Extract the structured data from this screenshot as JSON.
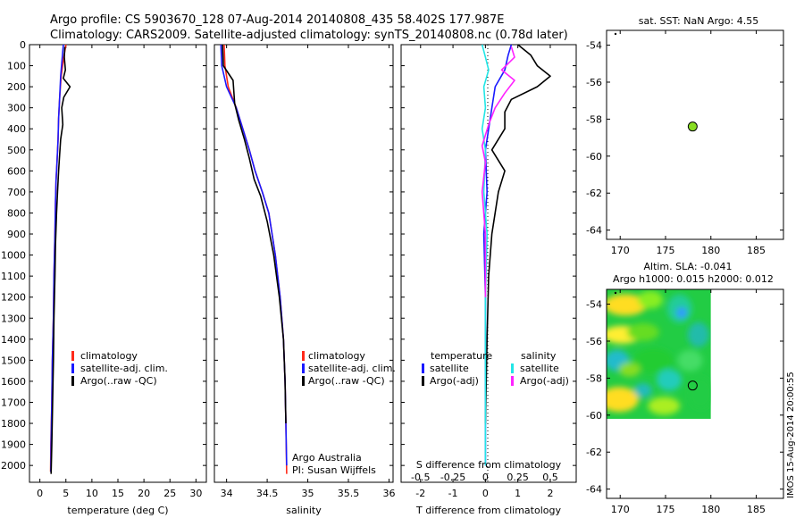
{
  "header": {
    "line1": "Argo profile: CS 5903670_128 07-Aug-2014 20140808_435 58.402S 177.987E",
    "line2": "Climatology: CARS2009. Satellite-adjusted climatology: synTS_20140808.nc (0.78d later)"
  },
  "colors": {
    "climatology": "#ff2a1a",
    "satellite": "#1a1aff",
    "argo": "#000000",
    "sat_salinity": "#22e6e6",
    "argo_salinity": "#ff22ff",
    "marker": "#88dd22"
  },
  "watermark": "IMOS 15-Aug-2014 20:00:55",
  "chart_data": [
    {
      "type": "line",
      "panel": "temperature",
      "xlabel": "temperature (deg C)",
      "xlim": [
        -2,
        32
      ],
      "ylim": [
        2080,
        0
      ],
      "xticks": [
        "0",
        "5",
        "10",
        "15",
        "20",
        "25",
        "30"
      ],
      "yticks": [
        "0",
        "100",
        "200",
        "300",
        "400",
        "500",
        "600",
        "700",
        "800",
        "900",
        "1000",
        "1100",
        "1200",
        "1300",
        "1400",
        "1500",
        "1600",
        "1700",
        "1800",
        "1900",
        "2000"
      ],
      "legend": [
        "climatology",
        "satellite-adj. clim.",
        "Argo(..raw -QC)"
      ],
      "series": [
        {
          "name": "climatology",
          "color": "#ff2a1a",
          "x": [
            5.0,
            4.6,
            4.1,
            3.8,
            3.6,
            3.5,
            3.3,
            3.1,
            3.0,
            2.9,
            2.7,
            2.6,
            2.4,
            2.3,
            2.1,
            2.05
          ],
          "y": [
            0,
            60,
            150,
            250,
            350,
            450,
            550,
            650,
            750,
            900,
            1100,
            1300,
            1500,
            1700,
            1900,
            2030
          ]
        },
        {
          "name": "satellite-adj. clim.",
          "color": "#1a1aff",
          "x": [
            4.5,
            4.3,
            4.0,
            3.8,
            3.6,
            3.5,
            3.3,
            3.1,
            3.0,
            2.9,
            2.7,
            2.6,
            2.4,
            2.3,
            2.15,
            2.1
          ],
          "y": [
            0,
            60,
            150,
            250,
            350,
            450,
            550,
            650,
            750,
            900,
            1100,
            1300,
            1500,
            1700,
            1900,
            2030
          ]
        },
        {
          "name": "Argo(..raw -QC)",
          "color": "#000000",
          "x": [
            4.8,
            4.7,
            4.9,
            4.5,
            5.8,
            4.6,
            4.2,
            4.4,
            4.0,
            3.8,
            3.6,
            3.4,
            3.2,
            3.0,
            2.9,
            2.7,
            2.6,
            2.45,
            2.3,
            2.15
          ],
          "y": [
            10,
            60,
            120,
            160,
            200,
            250,
            300,
            380,
            450,
            520,
            600,
            700,
            800,
            950,
            1100,
            1300,
            1500,
            1700,
            1900,
            2040
          ]
        }
      ]
    },
    {
      "type": "line",
      "panel": "salinity",
      "xlabel": "salinity",
      "xlim": [
        33.85,
        36.05
      ],
      "ylim": [
        2080,
        0
      ],
      "xticks": [
        "34",
        "34.5",
        "35",
        "35.5",
        "36"
      ],
      "legend": [
        "climatology",
        "satellite-adj. clim.",
        "Argo(..raw -QC)"
      ],
      "annotations": [
        "Argo Australia",
        "PI: Susan Wijffels"
      ],
      "series": [
        {
          "name": "climatology",
          "color": "#ff2a1a",
          "x": [
            33.97,
            33.98,
            34.02,
            34.12,
            34.2,
            34.28,
            34.35,
            34.44,
            34.52,
            34.6,
            34.66,
            34.7,
            34.72,
            34.73,
            34.74
          ],
          "y": [
            0,
            100,
            200,
            300,
            400,
            500,
            600,
            700,
            800,
            1000,
            1200,
            1400,
            1600,
            1800,
            2040
          ]
        },
        {
          "name": "satellite-adj. clim.",
          "color": "#1a1aff",
          "x": [
            33.93,
            33.94,
            34.0,
            34.12,
            34.2,
            34.28,
            34.35,
            34.44,
            34.52,
            34.6,
            34.66,
            34.7,
            34.72,
            34.73,
            34.74
          ],
          "y": [
            0,
            100,
            200,
            300,
            400,
            500,
            600,
            700,
            800,
            1000,
            1200,
            1400,
            1600,
            1800,
            2000
          ]
        },
        {
          "name": "Argo(..raw -QC)",
          "color": "#000000",
          "x": [
            33.95,
            33.96,
            34.08,
            34.1,
            34.15,
            34.22,
            34.28,
            34.34,
            34.42,
            34.5,
            34.58,
            34.65,
            34.7,
            34.72,
            34.73
          ],
          "y": [
            0,
            100,
            170,
            280,
            360,
            450,
            540,
            640,
            720,
            840,
            1000,
            1200,
            1400,
            1600,
            1800
          ]
        }
      ]
    },
    {
      "type": "line",
      "panel": "difference",
      "xlabel": "T difference from climatology",
      "xlabel2": "S difference from climatology",
      "xlim": [
        -2.6,
        2.8
      ],
      "ylim": [
        2080,
        0
      ],
      "xticks": [
        "-2",
        "-1",
        "0",
        "1",
        "2"
      ],
      "xticks_s": [
        "-0.5",
        "-0.25",
        "0",
        "0.25",
        "0.5"
      ],
      "legend_headers": [
        "temperature",
        "salinity"
      ],
      "legend": [
        "satellite",
        "Argo(-adj)",
        "satellite",
        "Argo(-adj)"
      ],
      "series": [
        {
          "name": "satellite",
          "group": "temperature",
          "color": "#1a1aff",
          "x": [
            0.8,
            0.7,
            0.6,
            0.3,
            0.2,
            0.1,
            0.0,
            0.05,
            -0.05,
            0.0,
            0.0,
            0.0
          ],
          "y": [
            0,
            50,
            120,
            200,
            300,
            400,
            500,
            700,
            900,
            1200,
            1500,
            2000
          ]
        },
        {
          "name": "Argo(-adj)",
          "group": "temperature",
          "color": "#000000",
          "x": [
            1.0,
            1.4,
            1.6,
            2.0,
            1.6,
            0.8,
            0.6,
            0.6,
            0.2,
            0.6,
            0.4,
            0.2,
            0.1,
            0.05,
            0.0
          ],
          "y": [
            0,
            50,
            100,
            150,
            200,
            260,
            320,
            400,
            500,
            600,
            700,
            900,
            1100,
            1400,
            1800
          ]
        },
        {
          "name": "satellite",
          "group": "salinity",
          "color": "#22e6e6",
          "x": [
            -0.1,
            0.0,
            0.1,
            -0.05,
            0.0,
            -0.1,
            0.0,
            -0.05,
            0.05,
            0.0,
            0.0,
            0.0
          ],
          "y": [
            0,
            60,
            120,
            200,
            300,
            400,
            500,
            700,
            900,
            1200,
            1500,
            2000
          ]
        },
        {
          "name": "Argo(-adj)",
          "group": "salinity",
          "color": "#ff22ff",
          "x": [
            0.8,
            0.9,
            0.5,
            0.9,
            0.6,
            0.3,
            0.1,
            -0.1,
            0.0,
            -0.1,
            0.0,
            0.0
          ],
          "y": [
            10,
            60,
            120,
            170,
            230,
            300,
            380,
            480,
            560,
            700,
            900,
            1200
          ]
        }
      ]
    },
    {
      "type": "scatter",
      "panel": "sst-map",
      "title": "sat. SST: NaN Argo: 4.55",
      "xlim": [
        168.5,
        188
      ],
      "ylim": [
        -64.5,
        -53.2
      ],
      "xticks": [
        "170",
        "175",
        "180",
        "185"
      ],
      "yticks": [
        "-54",
        "-56",
        "-58",
        "-60",
        "-62",
        "-64"
      ],
      "points": [
        {
          "x": 177.99,
          "y": -58.4
        }
      ]
    },
    {
      "type": "heatmap",
      "panel": "sla-map",
      "title": "Altim. SLA: -0.041",
      "subtitle": "Argo h1000: 0.015 h2000: 0.012",
      "xlim": [
        168.5,
        188
      ],
      "ylim": [
        -64.5,
        -53.2
      ],
      "xticks": [
        "170",
        "175",
        "180",
        "185"
      ],
      "yticks": [
        "-54",
        "-56",
        "-58",
        "-60",
        "-62",
        "-64"
      ],
      "extent": {
        "x": [
          168.5,
          180
        ],
        "y": [
          -60.2,
          -53.2
        ]
      },
      "points": [
        {
          "x": 177.99,
          "y": -58.4
        }
      ]
    }
  ]
}
